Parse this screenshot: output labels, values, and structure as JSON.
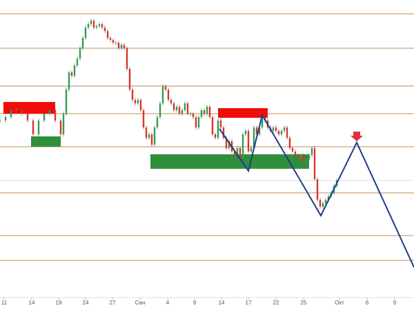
{
  "chart_data": {
    "type": "candlestick",
    "xlim": [
      0,
      600
    ],
    "ylim": [
      0,
      432
    ],
    "xticks": [
      {
        "value": 6,
        "label": "11"
      },
      {
        "value": 46,
        "label": "14"
      },
      {
        "value": 85,
        "label": "19"
      },
      {
        "value": 124,
        "label": "24"
      },
      {
        "value": 163,
        "label": "27"
      },
      {
        "value": 203,
        "label": "Сен"
      },
      {
        "value": 243,
        "label": "4"
      },
      {
        "value": 282,
        "label": "9"
      },
      {
        "value": 321,
        "label": "14"
      },
      {
        "value": 360,
        "label": "17"
      },
      {
        "value": 400,
        "label": "22"
      },
      {
        "value": 440,
        "label": "25"
      },
      {
        "value": 492,
        "label": "Окт"
      },
      {
        "value": 532,
        "label": "6"
      },
      {
        "value": 572,
        "label": "9"
      }
    ],
    "up_color": "#2e9e4f",
    "down_color": "#d9342b",
    "series": [
      {
        "x": [
          0,
          8,
          16,
          24,
          32,
          40,
          48,
          56,
          64,
          72,
          80,
          88,
          92,
          96,
          100,
          104,
          108,
          112,
          116,
          120,
          124,
          128,
          132,
          136,
          140,
          144,
          148,
          152,
          156,
          160,
          164,
          168,
          172,
          176,
          180,
          184,
          188,
          192,
          196,
          200,
          204,
          208,
          212,
          216,
          220,
          224,
          228,
          232,
          236,
          240,
          244,
          248,
          252,
          256,
          260,
          264,
          268,
          272,
          276,
          280,
          284,
          288,
          292,
          296,
          300,
          304,
          308,
          312,
          316,
          320,
          324,
          328,
          332,
          336,
          340,
          344,
          348,
          352,
          356,
          360,
          364,
          368,
          372,
          376,
          380,
          384,
          388,
          392,
          396,
          400,
          404,
          408,
          412,
          416,
          420,
          424,
          428,
          432,
          436,
          440,
          444,
          448,
          452,
          456,
          460,
          464,
          468,
          472,
          476,
          480,
          484,
          488
        ],
        "values": [
          257,
          262,
          272,
          274,
          267,
          257,
          237,
          257,
          267,
          272,
          257,
          237,
          267,
          302,
          327,
          322,
          337,
          347,
          362,
          377,
          392,
          397,
          402,
          392,
          394,
          397,
          392,
          387,
          377,
          374,
          370,
          370,
          362,
          367,
          362,
          332,
          302,
          287,
          282,
          287,
          272,
          247,
          232,
          237,
          222,
          247,
          262,
          282,
          307,
          302,
          287,
          282,
          272,
          277,
          267,
          272,
          282,
          267,
          267,
          262,
          247,
          262,
          272,
          267,
          277,
          262,
          237,
          232,
          257,
          247,
          232,
          217,
          227,
          212,
          207,
          217,
          202,
          237,
          242,
          212,
          217,
          247,
          237,
          247,
          262,
          257,
          247,
          242,
          247,
          242,
          237,
          242,
          247,
          232,
          217,
          212,
          207,
          202,
          207,
          197,
          202,
          207,
          217,
          172,
          142,
          132,
          137,
          142,
          147,
          152,
          162,
          170
        ]
      }
    ],
    "levels": {
      "color": "#c08a5a",
      "values": [
        412,
        362,
        307,
        267,
        219,
        152,
        90,
        54
      ]
    },
    "reference_line": {
      "color": "#dddddd",
      "value": 170
    },
    "zones": [
      {
        "color": "#f20d0d",
        "x": [
          5,
          80
        ],
        "y": [
          267,
          284
        ]
      },
      {
        "color": "#2f8f3a",
        "x": [
          45,
          88
        ],
        "y": [
          219,
          234
        ]
      },
      {
        "color": "#f20d0d",
        "x": [
          316,
          388
        ],
        "y": [
          261,
          275
        ]
      },
      {
        "color": "#2f8f3a",
        "x": [
          218,
          448
        ],
        "y": [
          187,
          208
        ]
      }
    ],
    "pattern": {
      "color": "#1f3a8a",
      "x": [
        318,
        360,
        380,
        465,
        517,
        600
      ],
      "values": [
        245,
        184,
        265,
        119,
        225,
        44
      ]
    }
  }
}
